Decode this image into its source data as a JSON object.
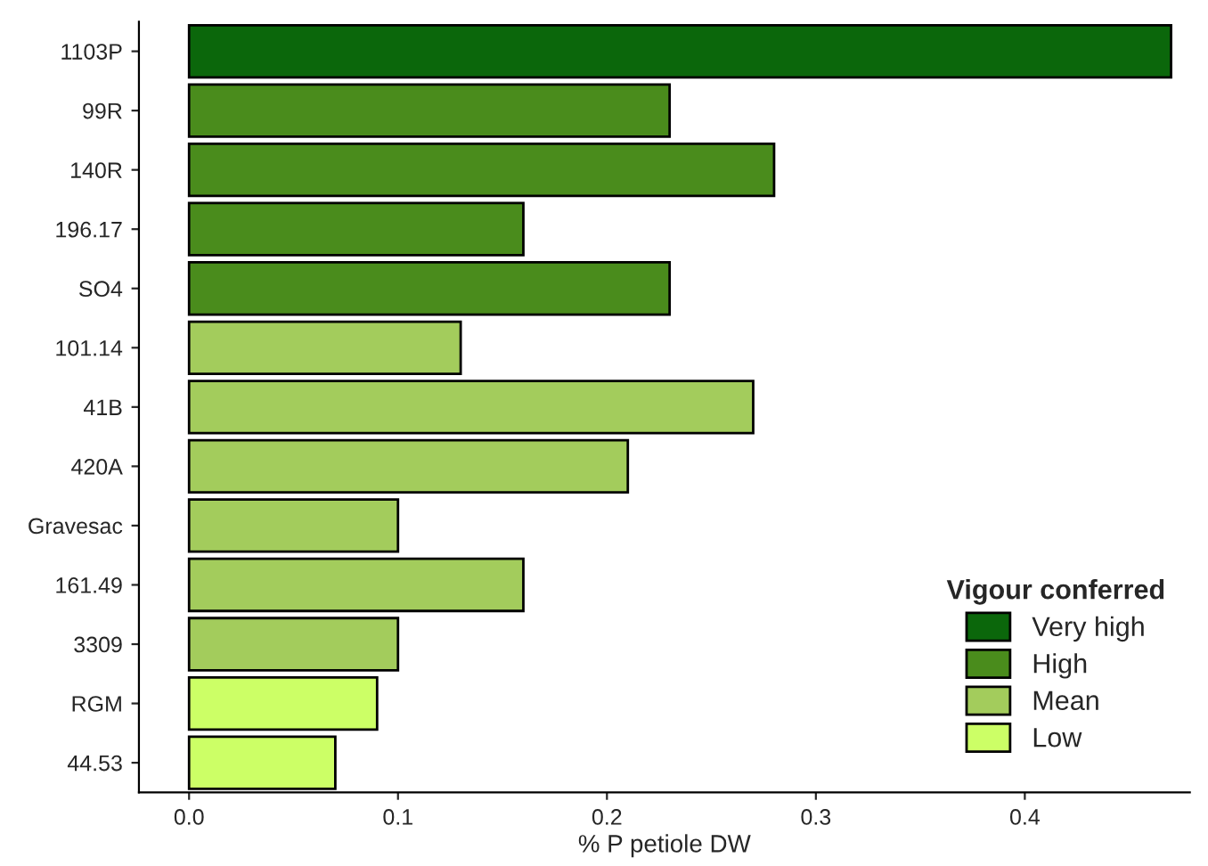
{
  "chart_data": {
    "type": "bar",
    "orientation": "horizontal",
    "xlabel": "% P petiole DW",
    "legend_title": "Vigour conferred",
    "legend": "bottom right",
    "grid": false,
    "categories": [
      "1103P",
      "99R",
      "140R",
      "196.17",
      "SO4",
      "101.14",
      "41B",
      "420A",
      "Gravesac",
      "161.49",
      "3309",
      "RGM",
      "44.53"
    ],
    "xlim": [
      -0.024,
      0.479
    ],
    "xticks": [
      {
        "value": 0,
        "label": "0.0"
      },
      {
        "value": 0.1,
        "label": "0.1"
      },
      {
        "value": 0.2,
        "label": "0.2"
      },
      {
        "value": 0.3,
        "label": "0.3"
      },
      {
        "value": 0.4,
        "label": "0.4"
      }
    ],
    "series": [
      {
        "name": "Very high",
        "color": "#0b670b",
        "values": [
          0.47,
          null,
          null,
          null,
          null,
          null,
          null,
          null,
          null,
          null,
          null,
          null,
          null
        ]
      },
      {
        "name": "High",
        "color": "#4a8c1c",
        "values": [
          null,
          0.23,
          0.28,
          0.16,
          0.23,
          null,
          null,
          null,
          null,
          null,
          null,
          null,
          null
        ]
      },
      {
        "name": "Mean",
        "color": "#a3cc5c",
        "values": [
          null,
          null,
          null,
          null,
          null,
          0.13,
          0.27,
          0.21,
          0.1,
          0.16,
          0.1,
          null,
          null
        ]
      },
      {
        "name": "Low",
        "color": "#ccff66",
        "values": [
          null,
          null,
          null,
          null,
          null,
          null,
          null,
          null,
          null,
          null,
          null,
          0.09,
          0.07
        ]
      }
    ]
  }
}
